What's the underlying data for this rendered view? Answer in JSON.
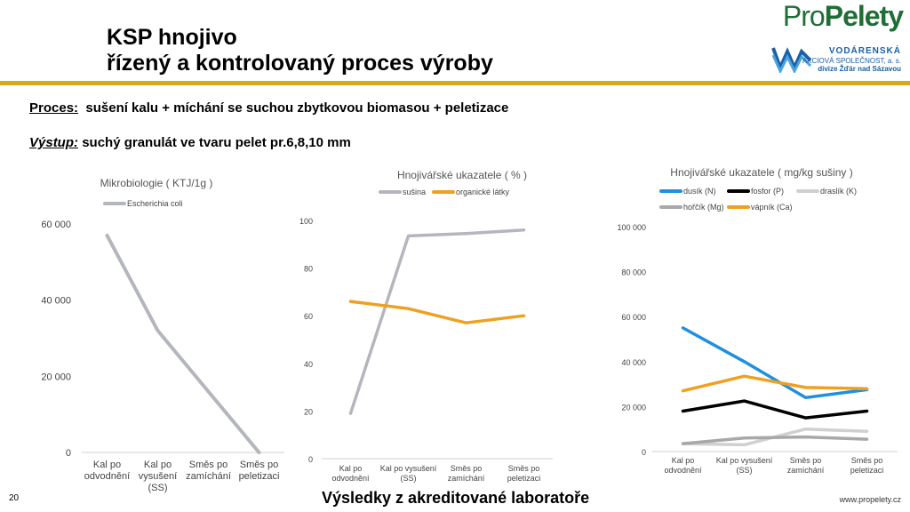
{
  "header": {
    "title_line1": "KSP hnojivo",
    "title_line2": "řízený a kontrolovaný proces výroby"
  },
  "logo": {
    "brand_pro": "Pro",
    "brand_pelety": "Pelety",
    "company_line1": "VODÁRENSKÁ",
    "company_line2": "AKCIOVÁ SPOLEČNOST, a. s.",
    "company_line3": "divize Žďár nad Sázavou"
  },
  "process": {
    "label": "Proces:",
    "text": "sušení kalu + míchání se suchou zbytkovou biomasou + peletizace"
  },
  "output": {
    "label": "Výstup:",
    "text": "suchý granulát ve tvaru pelet pr.6,8,10 mm"
  },
  "footer": {
    "slide_number": "20",
    "center_text": "Výsledky z akreditované laboratoře",
    "url": "www.propelety.cz"
  },
  "chart_data": [
    {
      "type": "line",
      "title": "Mikrobiologie ( KTJ/1g )",
      "categories": [
        [
          "Kal po",
          "odvodnění"
        ],
        [
          "Kal po",
          "vysušení",
          "(SS)"
        ],
        [
          "Směs po",
          "zamíchání"
        ],
        [
          "Směs po",
          "peletizaci"
        ]
      ],
      "series": [
        {
          "name": "Escherichia coli",
          "color": "#b4b6bd",
          "values": [
            57000,
            32000,
            16000,
            0
          ]
        }
      ],
      "ylim": [
        0,
        60000
      ],
      "yticks": [
        0,
        20000,
        40000,
        60000
      ],
      "ytick_labels": [
        "0",
        "20 000",
        "40 000",
        "60 000"
      ],
      "grid": false,
      "legend": "top"
    },
    {
      "type": "line",
      "title": "Hnojivářské ukazatele ( % )",
      "categories": [
        [
          "Kal po",
          "odvodnění"
        ],
        [
          "Kal po vysušení",
          "(SS)"
        ],
        [
          "Směs po",
          "zamíchání"
        ],
        [
          "Směs po",
          "peletizaci"
        ]
      ],
      "series": [
        {
          "name": "sušina",
          "color": "#b4b6bd",
          "values": [
            19,
            93.5,
            94.5,
            96
          ]
        },
        {
          "name": "organické látky",
          "color": "#f0a020",
          "values": [
            66,
            63,
            57,
            60
          ]
        }
      ],
      "ylim": [
        0,
        100
      ],
      "yticks": [
        0,
        20,
        40,
        60,
        80,
        100
      ],
      "ytick_labels": [
        "0",
        "20",
        "40",
        "60",
        "80",
        "100"
      ],
      "grid": false,
      "legend": "top"
    },
    {
      "type": "line",
      "title": "Hnojivářské ukazatele ( mg/kg sušiny )",
      "categories": [
        [
          "Kal po",
          "odvodnění"
        ],
        [
          "Kal po vysušení",
          "(SS)"
        ],
        [
          "Směs po",
          "zamíchání"
        ],
        [
          "Směs po",
          "peletizaci"
        ]
      ],
      "series": [
        {
          "name": "dusík (N)",
          "color": "#1f8fe0",
          "values": [
            55000,
            40000,
            24000,
            27500
          ]
        },
        {
          "name": "fosfor (P)",
          "color": "#000000",
          "values": [
            18000,
            22500,
            15000,
            18000
          ]
        },
        {
          "name": "draslík (K)",
          "color": "#d0d0d0",
          "values": [
            3500,
            3000,
            10000,
            9000
          ]
        },
        {
          "name": "hořčík (Mg)",
          "color": "#a8a8a8",
          "values": [
            3500,
            6000,
            6500,
            5500
          ]
        },
        {
          "name": "vápník (Ca)",
          "color": "#f0a020",
          "values": [
            27000,
            33500,
            28500,
            28000
          ]
        }
      ],
      "ylim": [
        0,
        100000
      ],
      "yticks": [
        0,
        20000,
        40000,
        60000,
        80000,
        100000
      ],
      "ytick_labels": [
        "0",
        "20 000",
        "40 000",
        "60 000",
        "80 000",
        "100 000"
      ],
      "grid": false,
      "legend": "top"
    }
  ]
}
